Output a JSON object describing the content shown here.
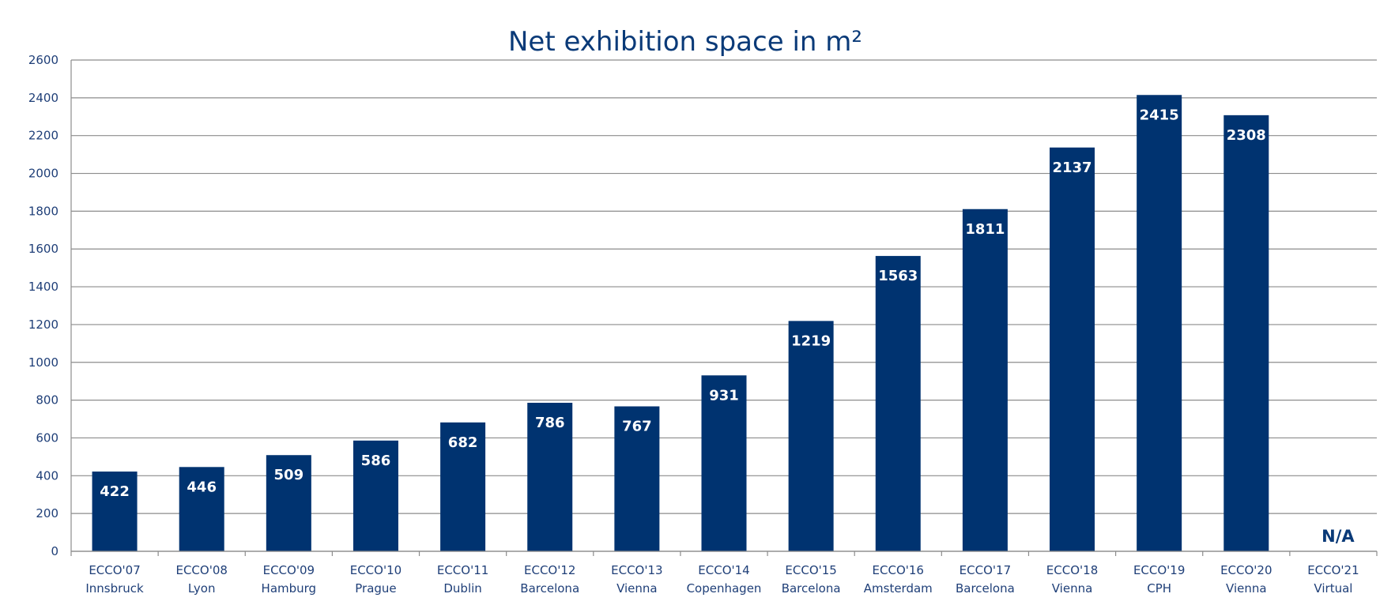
{
  "chart_data": {
    "type": "bar",
    "title": "Net exhibition space in m²",
    "xlabel": "",
    "ylabel": "",
    "categories": [
      [
        "ECCO'07",
        "Innsbruck"
      ],
      [
        "ECCO'08",
        "Lyon"
      ],
      [
        "ECCO'09",
        "Hamburg"
      ],
      [
        "ECCO'10",
        "Prague"
      ],
      [
        "ECCO'11",
        "Dublin"
      ],
      [
        "ECCO'12",
        "Barcelona"
      ],
      [
        "ECCO'13",
        "Vienna"
      ],
      [
        "ECCO'14",
        "Copenhagen"
      ],
      [
        "ECCO'15",
        "Barcelona"
      ],
      [
        "ECCO'16",
        "Amsterdam"
      ],
      [
        "ECCO'17",
        "Barcelona"
      ],
      [
        "ECCO'18",
        "Vienna"
      ],
      [
        "ECCO'19",
        "CPH"
      ],
      [
        "ECCO'20",
        "Vienna"
      ],
      [
        "ECCO'21",
        "Virtual"
      ]
    ],
    "values": [
      422,
      446,
      509,
      586,
      682,
      786,
      767,
      931,
      1219,
      1563,
      1811,
      2137,
      2415,
      2308,
      null
    ],
    "data_labels": [
      "422",
      "446",
      "509",
      "586",
      "682",
      "786",
      "767",
      "931",
      "1219",
      "1563",
      "1811",
      "2137",
      "2415",
      "2308",
      "N/A"
    ],
    "ylim": [
      0,
      2600
    ],
    "yticks": [
      0,
      200,
      400,
      600,
      800,
      1000,
      1200,
      1400,
      1600,
      1800,
      2000,
      2200,
      2400,
      2600
    ],
    "grid": true,
    "legend": "none",
    "colors": {
      "bar": "#003370",
      "title": "#0a3a78",
      "axis_text": "#1f3f78",
      "grid": "#8c8c8c"
    }
  }
}
